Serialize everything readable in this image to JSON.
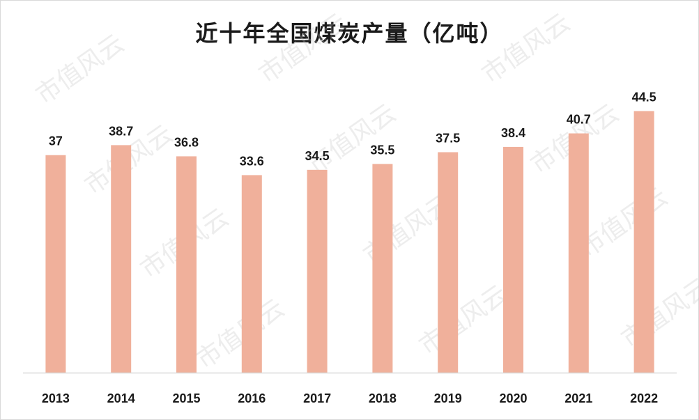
{
  "chart_data": {
    "type": "bar",
    "title": "近十年全国煤炭产量（亿吨）",
    "categories": [
      "2013",
      "2014",
      "2015",
      "2016",
      "2017",
      "2018",
      "2019",
      "2020",
      "2021",
      "2022"
    ],
    "values": [
      37,
      38.7,
      36.8,
      33.6,
      34.5,
      35.5,
      37.5,
      38.4,
      40.7,
      44.5
    ],
    "value_labels": [
      "37",
      "38.7",
      "36.8",
      "33.6",
      "34.5",
      "35.5",
      "37.5",
      "38.4",
      "40.7",
      "44.5"
    ],
    "ylim": [
      0,
      45.5
    ],
    "grid": false,
    "legend": "none",
    "bar_color": "#f0b09b",
    "axis_color": "#d9d9d9"
  },
  "watermark": "市值风云"
}
